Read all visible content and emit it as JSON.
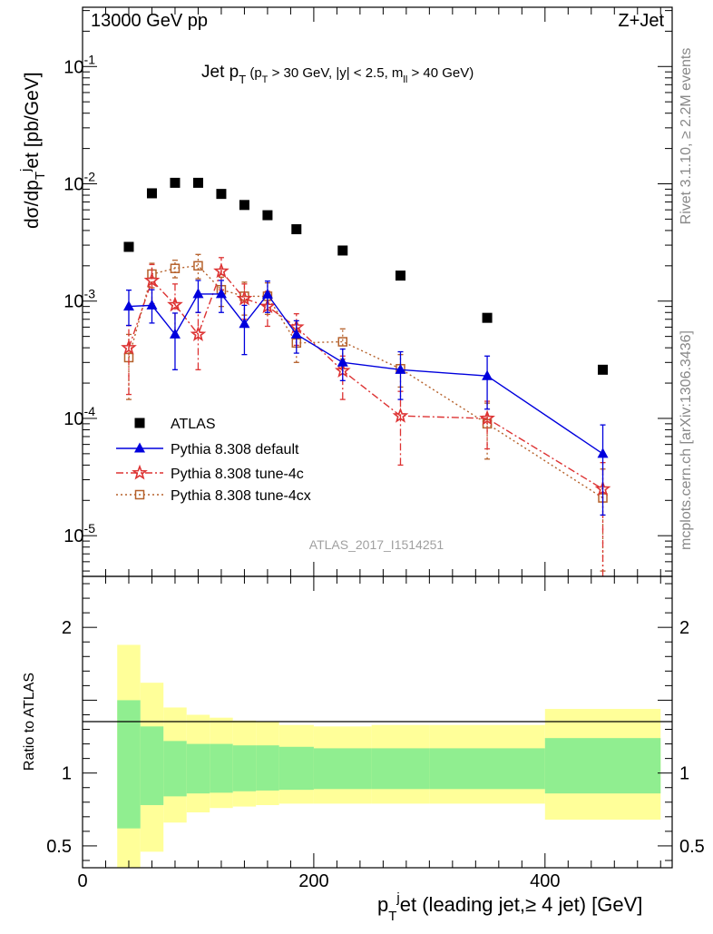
{
  "header": {
    "left": "13000 GeV pp",
    "right": "Z+Jet"
  },
  "side": {
    "rivet": "Rivet 3.1.10, ≥ 2.2M events",
    "mcplots": "mcplots.cern.ch [arXiv:1306.3436]"
  },
  "chart_data": [
    {
      "type": "scatter",
      "title": "Jet p_T (p_T > 30 GeV, |y| < 2.5, m_ll > 40 GeV)",
      "xlabel": "p_T^jet (leading jet,≥ 4 jet) [GeV]",
      "ylabel": "dσ/dp_T^jet [pb/GeV]",
      "xlim": [
        0,
        510
      ],
      "ylim": [
        4.5e-06,
        0.32
      ],
      "yscale": "log",
      "watermark": "ATLAS_2017_I1514251",
      "legend_position": "lower-left",
      "series": [
        {
          "name": "ATLAS",
          "color": "#000000",
          "marker": "square",
          "x": [
            40,
            60,
            80,
            100,
            120,
            140,
            160,
            185,
            225,
            275,
            350,
            450
          ],
          "y": [
            0.0029,
            0.0083,
            0.0102,
            0.0102,
            0.0082,
            0.0066,
            0.0054,
            0.0041,
            0.0027,
            0.00165,
            0.00072,
            0.00026
          ]
        },
        {
          "name": "Pythia 8.308 default",
          "color": "#0000dd",
          "marker": "triangle",
          "line": "solid",
          "x": [
            40,
            60,
            80,
            100,
            120,
            140,
            160,
            185,
            225,
            275,
            350,
            450
          ],
          "y": [
            0.0009,
            0.00092,
            0.00052,
            0.00115,
            0.00115,
            0.00064,
            0.00114,
            0.00052,
            0.0003,
            0.00026,
            0.00023,
            5e-05
          ],
          "err_lo": [
            0.00062,
            0.00065,
            0.00026,
            0.0008,
            0.0008,
            0.00035,
            0.0008,
            0.00036,
            0.00021,
            0.000145,
            0.00012,
            1.5e-05
          ],
          "err_hi": [
            0.00124,
            0.00125,
            0.00079,
            0.0015,
            0.0015,
            0.00092,
            0.00148,
            0.00068,
            0.00039,
            0.00037,
            0.00034,
            8.8e-05
          ]
        },
        {
          "name": "Pythia 8.308 tune-4c",
          "color": "#dd3333",
          "marker": "star",
          "line": "dashdot",
          "x": [
            40,
            60,
            80,
            100,
            120,
            140,
            160,
            185,
            225,
            275,
            350,
            450
          ],
          "y": [
            0.0004,
            0.0015,
            0.00093,
            0.00052,
            0.0018,
            0.00105,
            0.0009,
            0.0006,
            0.000255,
            0.000105,
            0.0001,
            2.5e-05
          ],
          "err_lo": [
            0.00016,
            0.00095,
            0.00052,
            0.00026,
            0.00125,
            0.0007,
            0.00061,
            0.00042,
            0.000145,
            4e-05,
            5.5e-05,
            1e-06
          ],
          "err_hi": [
            0.00062,
            0.00205,
            0.0014,
            0.0008,
            0.00235,
            0.0014,
            0.00121,
            0.00078,
            0.00034,
            0.00017,
            0.00014,
            4.2e-05
          ]
        },
        {
          "name": "Pythia 8.308 tune-4cx",
          "color": "#b5602a",
          "marker": "open-square",
          "line": "dotted",
          "x": [
            40,
            60,
            80,
            100,
            120,
            140,
            160,
            185,
            225,
            275,
            350,
            450
          ],
          "y": [
            0.00033,
            0.0017,
            0.0019,
            0.002,
            0.00125,
            0.0011,
            0.0011,
            0.00044,
            0.00045,
            0.000265,
            9e-05,
            2.1e-05
          ],
          "err_lo": [
            0.000145,
            0.0013,
            0.00158,
            0.00155,
            0.0009,
            0.00076,
            0.00077,
            0.0003,
            0.00032,
            0.000185,
            4.5e-05,
            5e-06
          ],
          "err_hi": [
            0.00052,
            0.0021,
            0.00223,
            0.0025,
            0.0016,
            0.00145,
            0.00143,
            0.00058,
            0.00058,
            0.00035,
            0.000135,
            3.7e-05
          ]
        }
      ]
    },
    {
      "type": "area",
      "title": "",
      "xlabel": "p_T^jet (leading jet,≥ 4 jet) [GeV]",
      "ylabel": "Ratio to ATLAS",
      "xlim": [
        0,
        510
      ],
      "ylim": [
        0.35,
        2.35
      ],
      "yticks": [
        0.5,
        1,
        2
      ],
      "bands": [
        {
          "name": "stat",
          "color": "#90ee90",
          "edges": [
            30,
            50,
            70,
            90,
            110,
            130,
            150,
            170,
            200,
            250,
            300,
            400,
            500
          ],
          "lo": [
            0.62,
            0.78,
            0.84,
            0.86,
            0.865,
            0.875,
            0.88,
            0.885,
            0.89,
            0.89,
            0.89,
            0.86
          ],
          "hi": [
            1.5,
            1.32,
            1.22,
            1.2,
            1.2,
            1.19,
            1.19,
            1.18,
            1.17,
            1.17,
            1.17,
            1.24
          ]
        },
        {
          "name": "total",
          "color": "#ffff99",
          "edges": [
            30,
            50,
            70,
            90,
            110,
            130,
            150,
            170,
            200,
            250,
            300,
            400,
            500
          ],
          "lo": [
            0.3,
            0.46,
            0.66,
            0.73,
            0.76,
            0.77,
            0.78,
            0.79,
            0.79,
            0.79,
            0.79,
            0.68
          ],
          "hi": [
            1.88,
            1.62,
            1.45,
            1.4,
            1.38,
            1.36,
            1.35,
            1.33,
            1.32,
            1.33,
            1.33,
            1.44
          ]
        }
      ]
    }
  ]
}
